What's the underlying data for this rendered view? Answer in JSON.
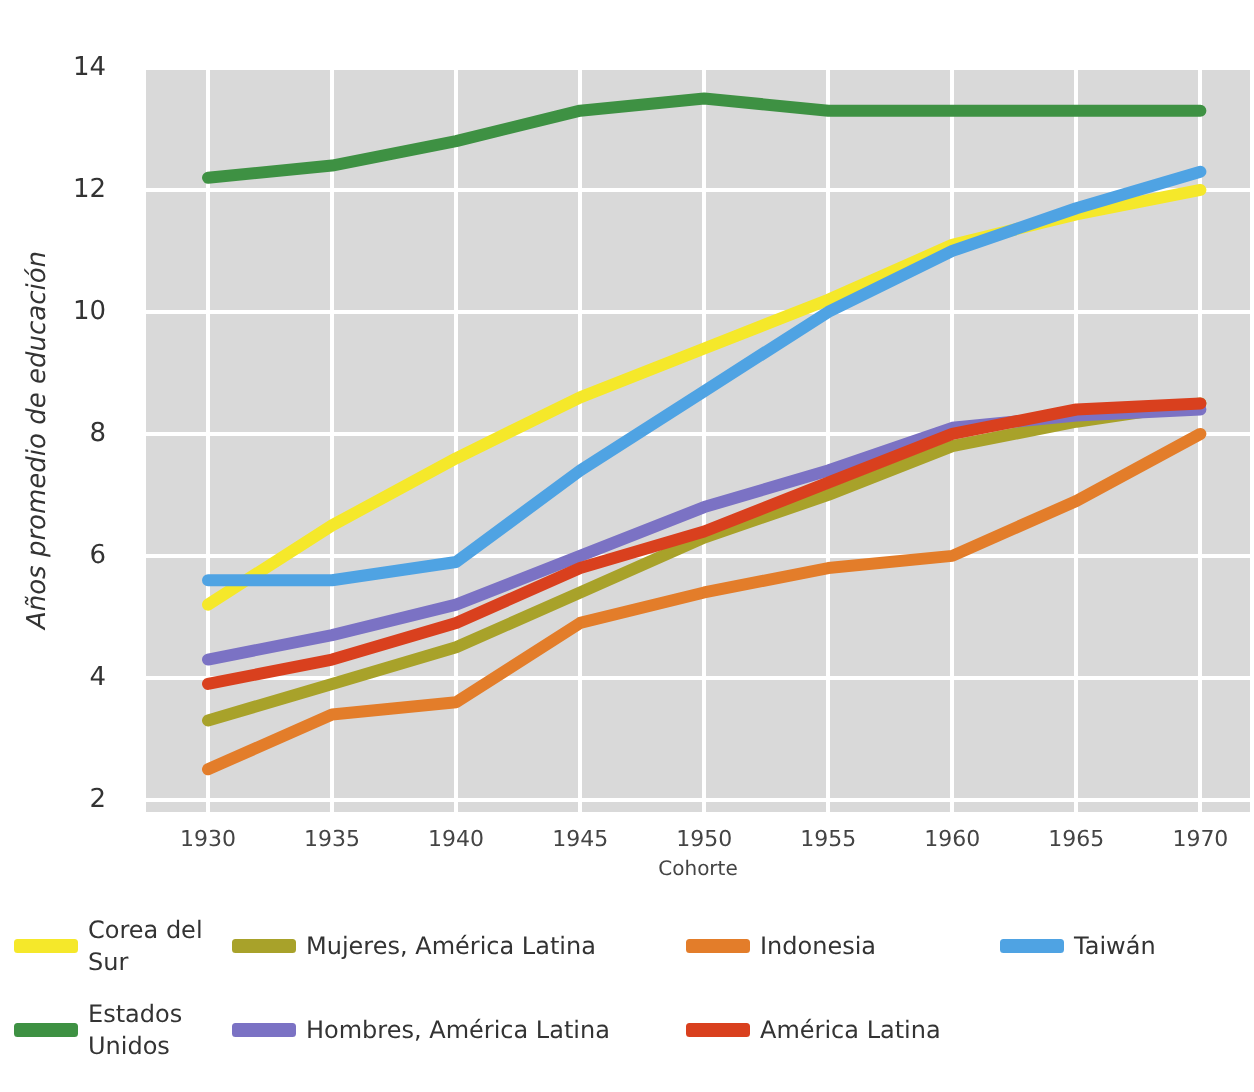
{
  "chart_data": {
    "type": "line",
    "xlabel": "Cohorte",
    "ylabel": "Años promedio de educación",
    "x": [
      1930,
      1935,
      1940,
      1945,
      1950,
      1955,
      1960,
      1965,
      1970
    ],
    "xlim": [
      1927.5,
      1972
    ],
    "xticks": [
      1930,
      1935,
      1940,
      1945,
      1950,
      1955,
      1960,
      1965,
      1970
    ],
    "ylim": [
      1.8,
      14
    ],
    "yticks": [
      2,
      4,
      6,
      8,
      10,
      12,
      14
    ],
    "grid": true,
    "legend": "bottom",
    "marker": "none",
    "line_style": "solid",
    "series": [
      {
        "name": "Corea del Sur",
        "color": "#f5e82a",
        "values": [
          5.2,
          6.5,
          7.6,
          8.6,
          9.4,
          10.2,
          11.1,
          11.6,
          12.0
        ]
      },
      {
        "name": "Mujeres, América Latina",
        "color": "#a8a22a",
        "values": [
          3.3,
          3.9,
          4.5,
          5.4,
          6.3,
          7.0,
          7.8,
          8.2,
          8.5
        ]
      },
      {
        "name": "Indonesia",
        "color": "#e37d2a",
        "values": [
          2.5,
          3.4,
          3.6,
          4.9,
          5.4,
          5.8,
          6.0,
          6.9,
          8.0
        ]
      },
      {
        "name": "Taiwán",
        "color": "#4fa3e3",
        "values": [
          5.6,
          5.6,
          5.9,
          7.4,
          8.7,
          10.0,
          11.0,
          11.7,
          12.3
        ]
      },
      {
        "name": "Estados Unidos",
        "color": "#3e9143",
        "values": [
          12.2,
          12.4,
          12.8,
          13.3,
          13.5,
          13.3,
          13.3,
          13.3,
          13.3
        ]
      },
      {
        "name": "Hombres, América Latina",
        "color": "#7b72c4",
        "values": [
          4.3,
          4.7,
          5.2,
          6.0,
          6.8,
          7.4,
          8.1,
          8.3,
          8.4
        ]
      },
      {
        "name": "América Latina",
        "color": "#d9401e",
        "values": [
          3.9,
          4.3,
          4.9,
          5.8,
          6.4,
          7.2,
          8.0,
          8.4,
          8.5
        ]
      }
    ]
  }
}
